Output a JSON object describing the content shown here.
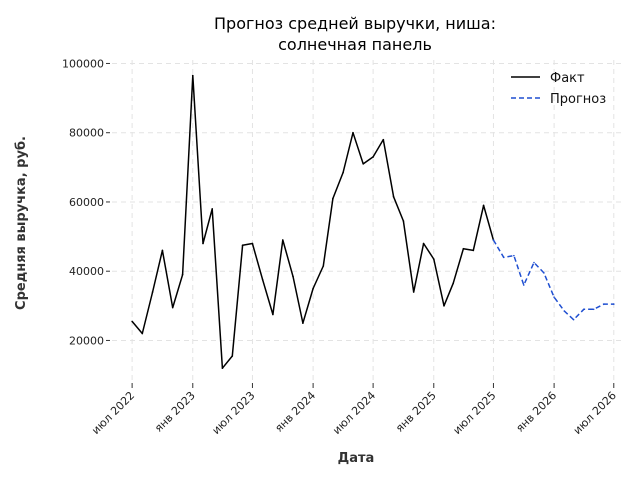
{
  "chart_data": {
    "type": "line",
    "title_lines": [
      "Прогноз средней выручки, ниша:",
      "солнечная панель"
    ],
    "xlabel": "Дата",
    "ylabel": "Средняя выручка, руб.",
    "ylim": [
      8000,
      101000
    ],
    "yticks": [
      20000,
      40000,
      60000,
      80000,
      100000
    ],
    "ytick_labels": [
      "20000",
      "40000",
      "60000",
      "80000",
      "100000"
    ],
    "xlim": [
      "2022-05-01",
      "2026-08-01"
    ],
    "xticks": [
      "2022-07-01",
      "2023-01-01",
      "2023-07-01",
      "2024-01-01",
      "2024-07-01",
      "2025-01-01",
      "2025-07-01",
      "2026-01-01",
      "2026-07-01"
    ],
    "xtick_labels": [
      "июл 2022",
      "янв 2023",
      "июл 2023",
      "янв 2024",
      "июл 2024",
      "янв 2025",
      "июл 2025",
      "янв 2026",
      "июл 2026"
    ],
    "grid": true,
    "legend_position": "top-right",
    "series": [
      {
        "name": "Факт",
        "color": "#000000",
        "style": "solid",
        "x": [
          "2022-07",
          "2022-08",
          "2022-09",
          "2022-10",
          "2022-11",
          "2022-12",
          "2023-01",
          "2023-02",
          "2023-03",
          "2023-04",
          "2023-05",
          "2023-06",
          "2023-07",
          "2023-08",
          "2023-09",
          "2023-10",
          "2023-11",
          "2023-12",
          "2024-01",
          "2024-02",
          "2024-03",
          "2024-04",
          "2024-05",
          "2024-06",
          "2024-07",
          "2024-08",
          "2024-09",
          "2024-10",
          "2024-11",
          "2024-12",
          "2025-01",
          "2025-02",
          "2025-03",
          "2025-04",
          "2025-05",
          "2025-06",
          "2025-07"
        ],
        "y": [
          25500,
          22000,
          34000,
          46000,
          29500,
          39000,
          96500,
          48000,
          58000,
          12000,
          15500,
          47500,
          48000,
          37500,
          27500,
          49000,
          38500,
          25000,
          35000,
          41500,
          61000,
          68500,
          80000,
          71000,
          73000,
          78000,
          61500,
          54500,
          34000,
          48000,
          43500,
          30000,
          36500,
          46500,
          46000,
          59000,
          49000
        ]
      },
      {
        "name": "Прогноз",
        "color": "#1f4fd1",
        "style": "dashed",
        "x": [
          "2025-07",
          "2025-08",
          "2025-09",
          "2025-10",
          "2025-11",
          "2025-12",
          "2026-01",
          "2026-02",
          "2026-03",
          "2026-04",
          "2026-05",
          "2026-06",
          "2026-07"
        ],
        "y": [
          49000,
          44000,
          44500,
          36000,
          42500,
          39500,
          32500,
          28500,
          26000,
          29000,
          29000,
          30500,
          30500
        ]
      }
    ]
  }
}
